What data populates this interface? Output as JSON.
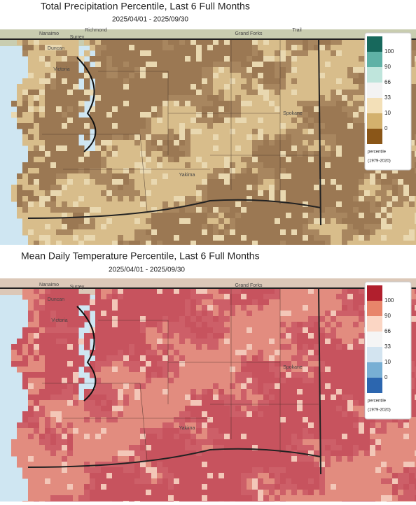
{
  "panels": [
    {
      "title": "Total Precipitation Percentile, Last 6 Full Months",
      "date_range": "2025/04/01 - 2025/09/30",
      "legend": {
        "ticks": [
          "100",
          "90",
          "66",
          "33",
          "10",
          "0"
        ],
        "colors": [
          "#17685c",
          "#5fb1a6",
          "#bfe5dc",
          "#f3f3f3",
          "#f3e0b8",
          "#d3b16d",
          "#8a5618"
        ],
        "unit": "percentile",
        "period": "(1979-2020)"
      },
      "places": [
        "Nanaimo",
        "Richmond",
        "Surrey",
        "Duncan",
        "Victoria",
        "Grand Forks",
        "Trail",
        "Spokane",
        "Yakima"
      ]
    },
    {
      "title": "Mean Daily Temperature Percentile, Last 6 Full Months",
      "date_range": "2025/04/01 - 2025/09/30",
      "legend": {
        "ticks": [
          "100",
          "90",
          "66",
          "33",
          "10",
          "0"
        ],
        "colors": [
          "#b11f2d",
          "#e8856a",
          "#fbd6c4",
          "#f5f5f5",
          "#d3e4f0",
          "#78afd4",
          "#2c66af"
        ],
        "unit": "percentile",
        "period": "(1979-2020)"
      },
      "places": [
        "Nanaimo",
        "Surrey",
        "Duncan",
        "Victoria",
        "Grand Forks",
        "Spokane",
        "Yakima"
      ]
    }
  ]
}
